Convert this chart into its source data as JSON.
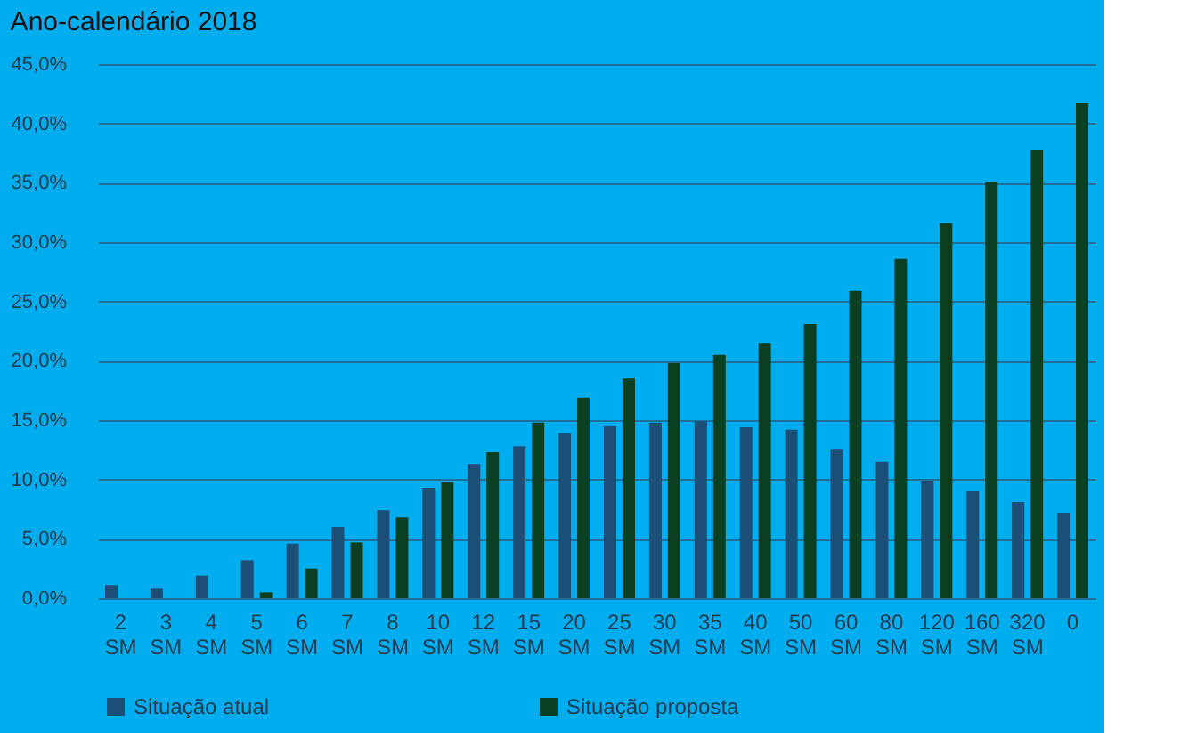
{
  "chart_data": {
    "type": "bar",
    "title": "Ano-calendário 2018",
    "categories": [
      "2 SM",
      "3 SM",
      "4 SM",
      "5 SM",
      "6 SM",
      "7 SM",
      "8 SM",
      "10 SM",
      "12 SM",
      "15 SM",
      "20 SM",
      "25 SM",
      "30 SM",
      "35 SM",
      "40 SM",
      "50 SM",
      "60 SM",
      "80 SM",
      "120 SM",
      "160 SM",
      "320 SM",
      "0"
    ],
    "series": [
      {
        "name": "Situação atual",
        "color": "#1b4f78",
        "values": [
          1.1,
          0.8,
          1.9,
          3.2,
          4.6,
          6.0,
          7.4,
          9.3,
          11.3,
          12.8,
          13.9,
          14.5,
          14.8,
          14.9,
          14.4,
          14.2,
          12.5,
          11.5,
          9.9,
          9.0,
          8.1,
          7.2
        ]
      },
      {
        "name": "Situação proposta",
        "color": "#0b3f22",
        "values": [
          0,
          0,
          0,
          0.5,
          2.5,
          4.7,
          6.8,
          9.8,
          12.3,
          14.8,
          16.9,
          18.5,
          19.8,
          20.5,
          21.5,
          23.1,
          25.9,
          28.6,
          31.6,
          35.1,
          37.8,
          41.7
        ]
      }
    ],
    "ylim": [
      0,
      45
    ],
    "yticks": [
      {
        "value": 0,
        "label": "0,0%"
      },
      {
        "value": 5,
        "label": "5,0%"
      },
      {
        "value": 10,
        "label": "10,0%"
      },
      {
        "value": 15,
        "label": "15,0%"
      },
      {
        "value": 20,
        "label": "20,0%"
      },
      {
        "value": 25,
        "label": "25,0%"
      },
      {
        "value": 30,
        "label": "30,0%"
      },
      {
        "value": 35,
        "label": "35,0%"
      },
      {
        "value": 40,
        "label": "40,0%"
      },
      {
        "value": 45,
        "label": "45,0%"
      }
    ],
    "grid": "y",
    "legend": "bottom"
  }
}
